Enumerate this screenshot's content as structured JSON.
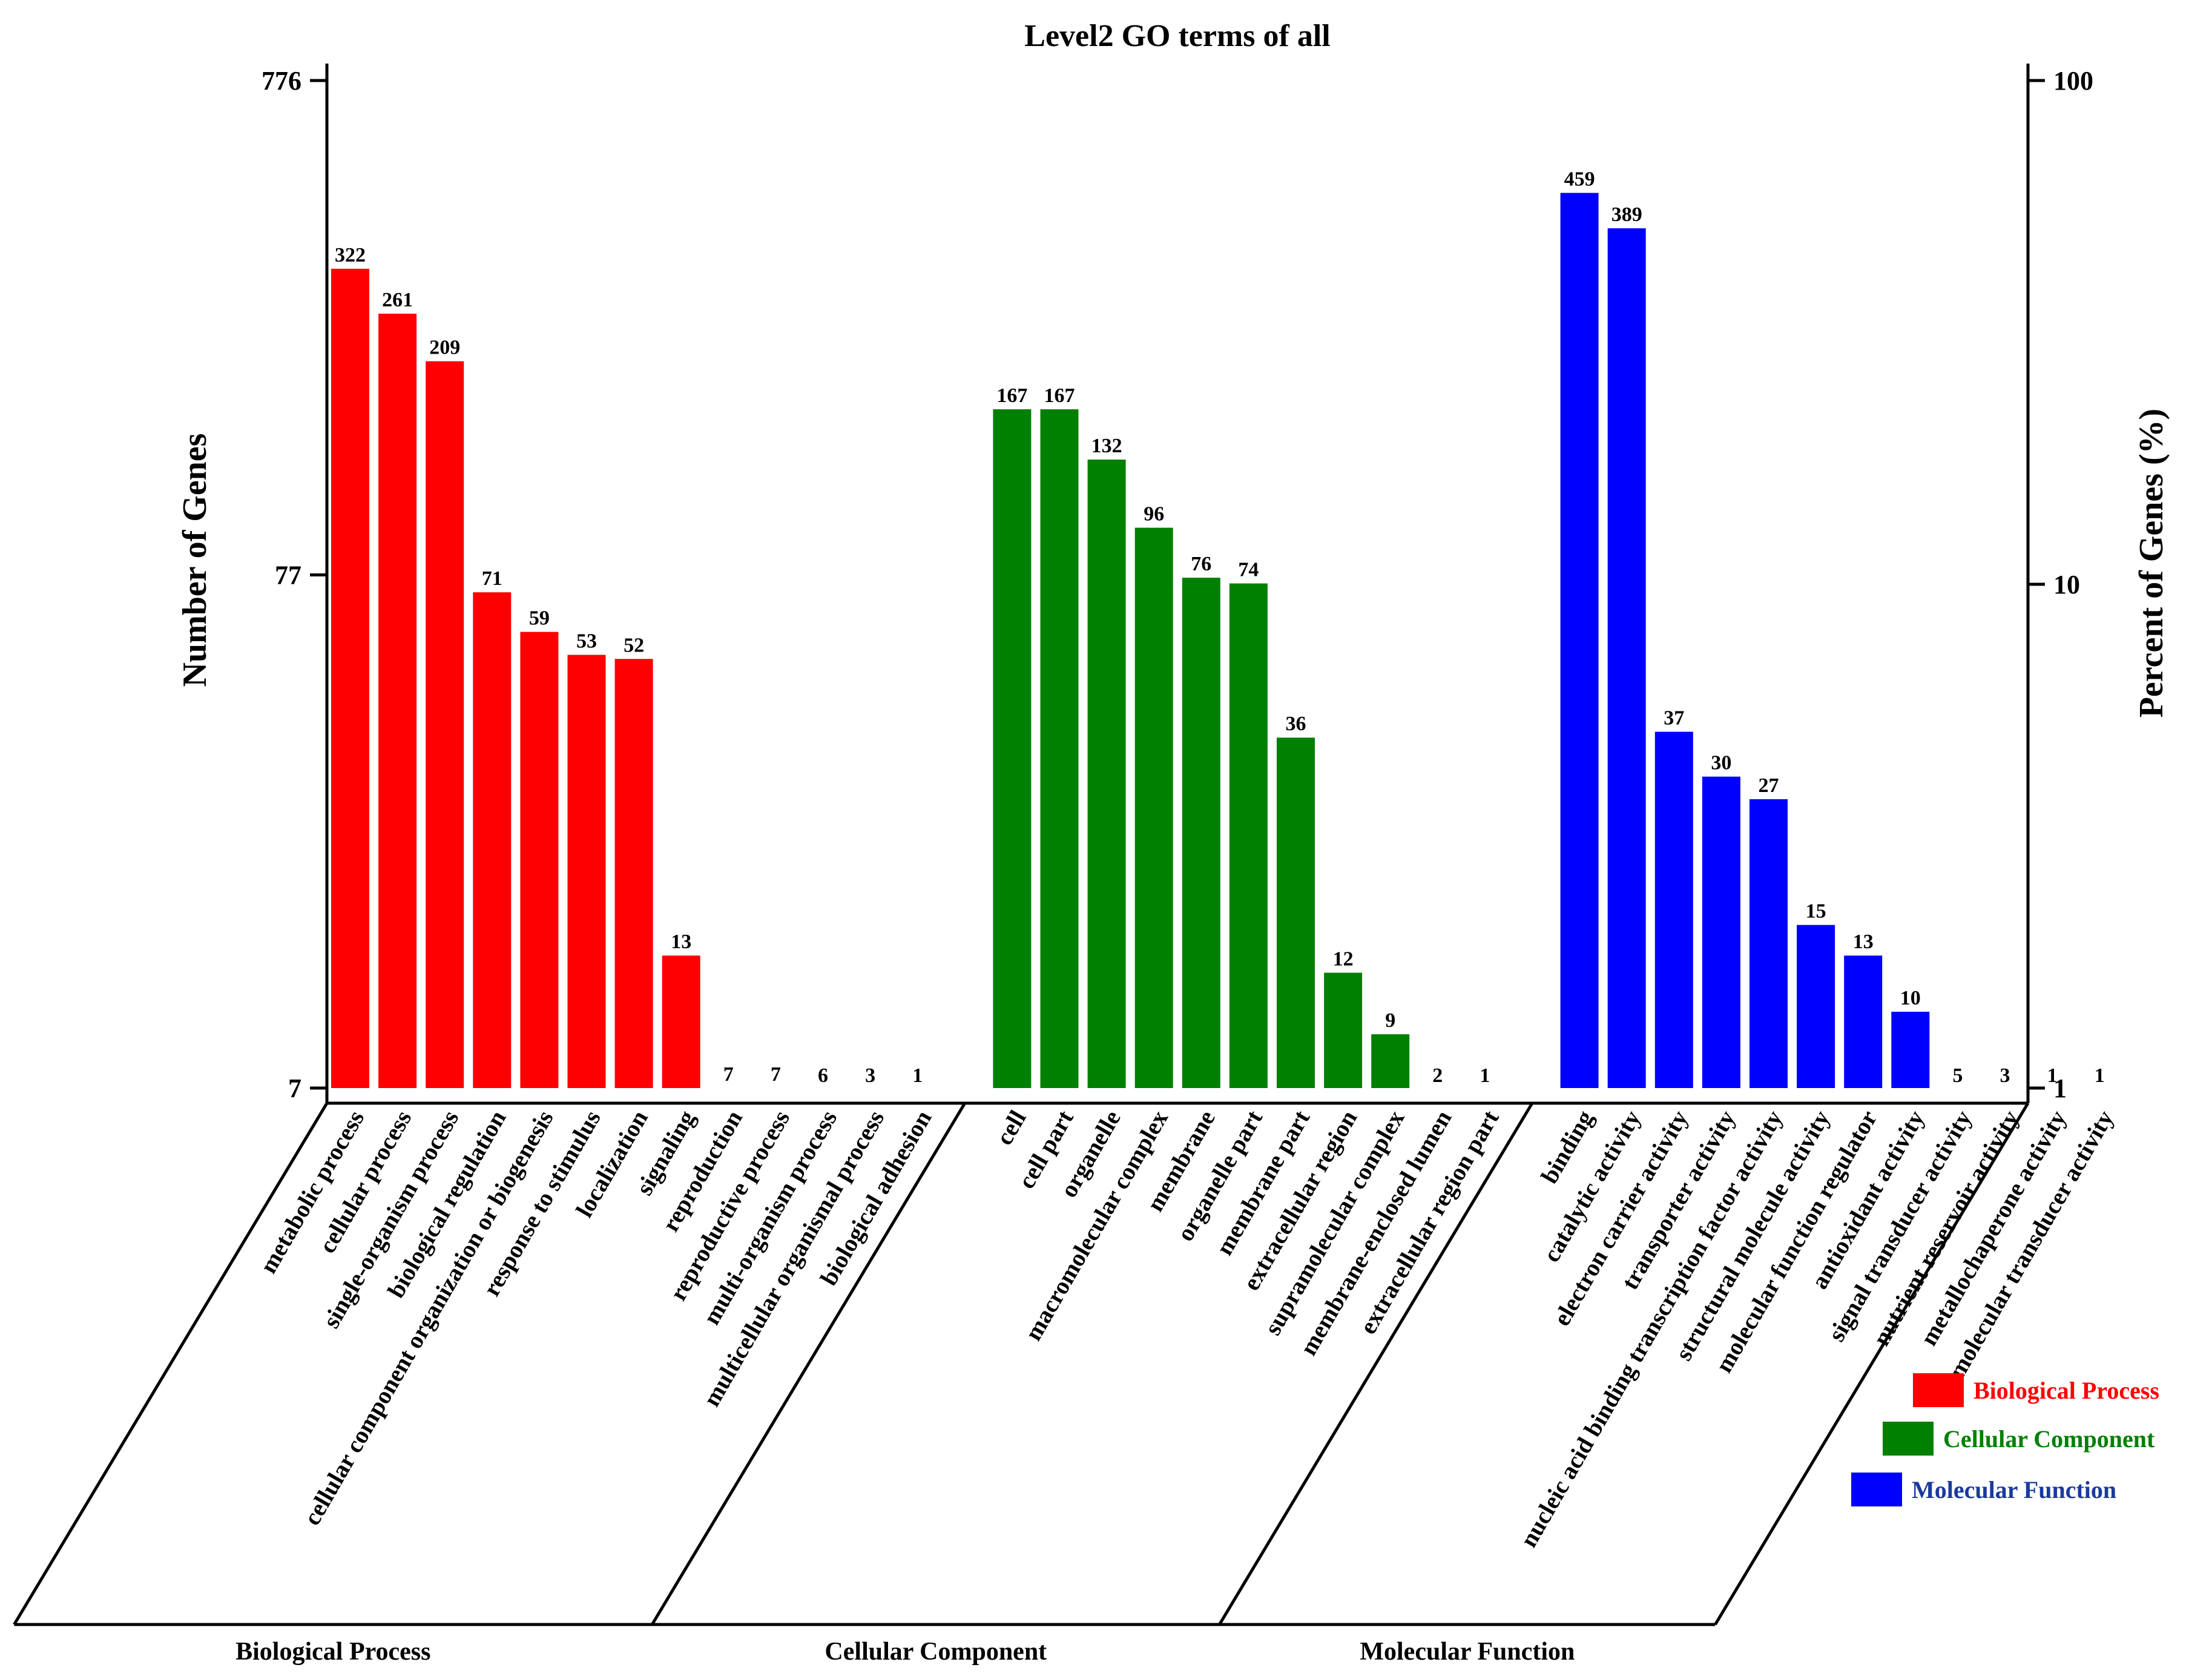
{
  "chart_data": {
    "type": "bar",
    "title": "Level2 GO terms of all",
    "ylabel_left": "Number of Genes",
    "ylabel_right": "Percent of Genes (%)",
    "yscale": "log",
    "left_ticks": [
      "776",
      "77",
      "7"
    ],
    "right_ticks": [
      "100",
      "10",
      "1"
    ],
    "ylim_left": [
      7,
      776
    ],
    "ylim_right": [
      1,
      100
    ],
    "groups": [
      {
        "name": "Biological Process",
        "color": "#ff0000",
        "legend_color": "#ff0000",
        "categories": [
          "metabolic process",
          "cellular process",
          "single-organism process",
          "biological regulation",
          "cellular component organization or biogenesis",
          "response to stimulus",
          "localization",
          "signaling",
          "reproduction",
          "reproductive process",
          "multi-organism process",
          "multicellular organismal process",
          "biological adhesion"
        ],
        "values": [
          322,
          261,
          209,
          71,
          59,
          53,
          52,
          13,
          7,
          7,
          6,
          3,
          1
        ]
      },
      {
        "name": "Cellular Component",
        "color": "#008000",
        "legend_color": "#008000",
        "categories": [
          "cell",
          "cell part",
          "organelle",
          "macromolecular complex",
          "membrane",
          "organelle part",
          "membrane part",
          "extracellular region",
          "supramolecular complex",
          "membrane-enclosed lumen",
          "extracellular region part"
        ],
        "values": [
          167,
          167,
          132,
          96,
          76,
          74,
          36,
          12,
          9,
          2,
          1
        ]
      },
      {
        "name": "Molecular Function",
        "color": "#0000ff",
        "legend_color": "#1a3a9e",
        "categories": [
          "binding",
          "catalytic activity",
          "electron carrier activity",
          "transporter activity",
          "nucleic acid binding transcription factor activity",
          "structural molecule activity",
          "molecular function regulator",
          "antioxidant activity",
          "signal transducer activity",
          "nutrient reservoir activity",
          "metallochaperone activity",
          "molecular transducer activity"
        ],
        "values": [
          459,
          389,
          37,
          30,
          27,
          15,
          13,
          10,
          5,
          3,
          1,
          1
        ]
      }
    ],
    "legend_position": "bottom-right"
  }
}
